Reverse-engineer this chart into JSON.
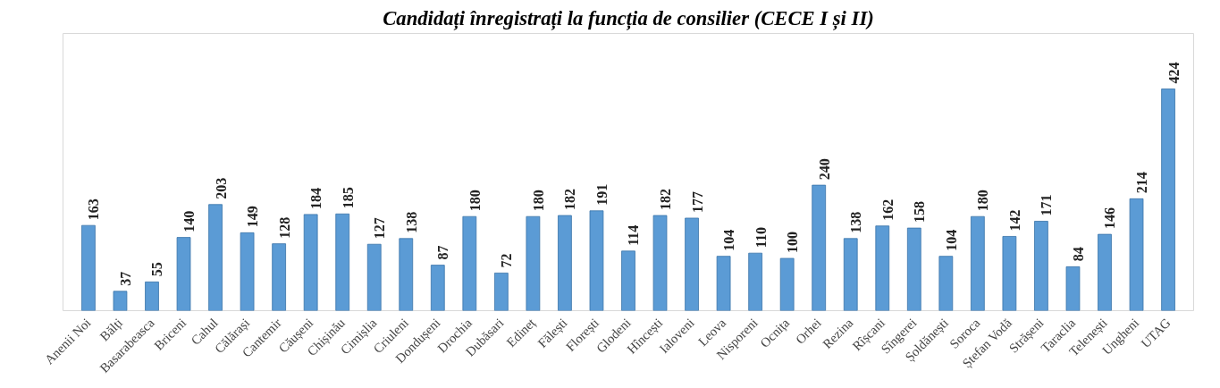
{
  "chart_data": {
    "type": "bar",
    "title": "Candidați înregistrați la funcția de consilier (CECE I și II)",
    "categories": [
      "Anenii Noi",
      "Bălți",
      "Basarabeasca",
      "Briceni",
      "Cahul",
      "Călărași",
      "Cantemir",
      "Căușeni",
      "Chișinău",
      "Cimișlia",
      "Criuleni",
      "Dondușeni",
      "Drochia",
      "Dubăsari",
      "Edineț",
      "Fălești",
      "Florești",
      "Glodeni",
      "Hîncești",
      "Ialoveni",
      "Leova",
      "Nisporeni",
      "Ocnița",
      "Orhei",
      "Rezina",
      "Rîșcani",
      "Sîngerei",
      "Șoldănești",
      "Soroca",
      "Ștefan Vodă",
      "Strășeni",
      "Taraclia",
      "Telenești",
      "Ungheni",
      "UTAG"
    ],
    "values": [
      163,
      37,
      55,
      140,
      203,
      149,
      128,
      184,
      185,
      127,
      138,
      87,
      180,
      72,
      180,
      182,
      191,
      114,
      182,
      177,
      104,
      110,
      100,
      240,
      138,
      162,
      158,
      104,
      180,
      142,
      171,
      84,
      146,
      214,
      424
    ],
    "color": "#5b9bd5",
    "data_labels": true,
    "grid": false
  }
}
